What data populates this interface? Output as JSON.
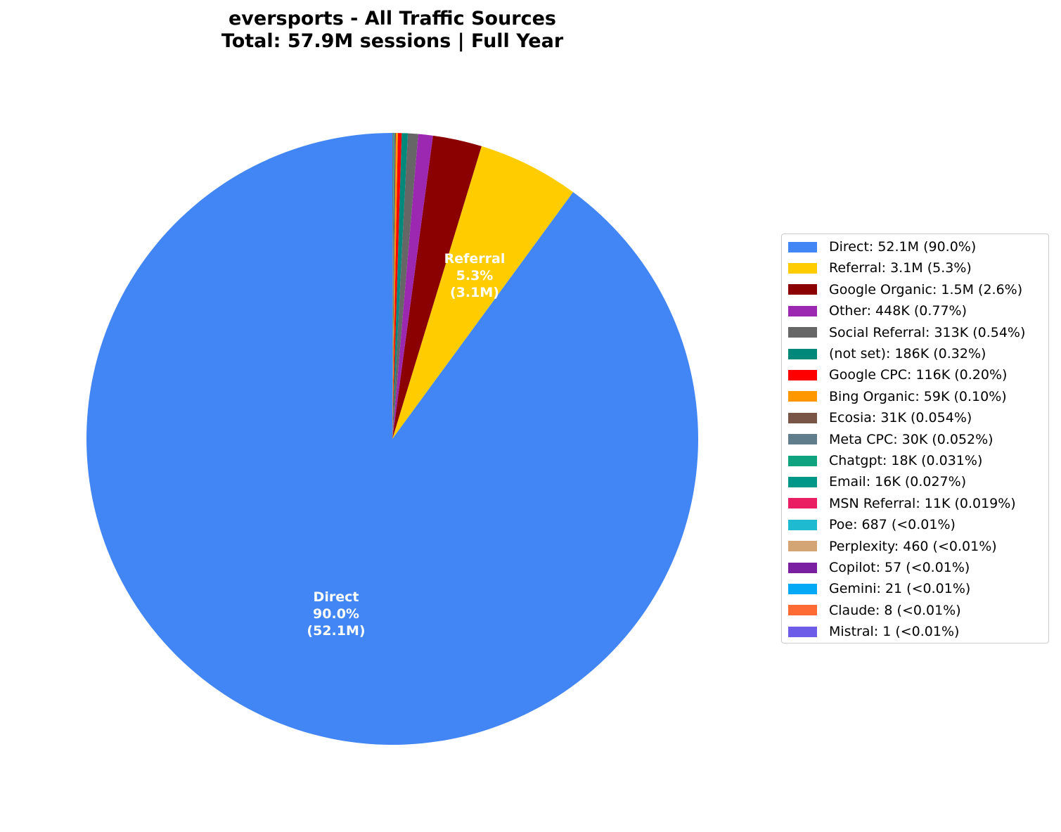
{
  "chart_data": {
    "type": "pie",
    "title": "eversports - All Traffic Sources",
    "subtitle": "Total: 57.9M sessions | Full Year",
    "start_angle": 90,
    "direction": "counterclockwise",
    "legend_position": "right",
    "slices": [
      {
        "name": "Direct",
        "value": 52100000,
        "display": "52.1M",
        "percent": "90.0%",
        "color": "#4285F4"
      },
      {
        "name": "Referral",
        "value": 3100000,
        "display": "3.1M",
        "percent": "5.3%",
        "color": "#FFCC00"
      },
      {
        "name": "Google Organic",
        "value": 1500000,
        "display": "1.5M",
        "percent": "2.6%",
        "color": "#8B0000"
      },
      {
        "name": "Other",
        "value": 448000,
        "display": "448K",
        "percent": "0.77%",
        "color": "#9C27B0"
      },
      {
        "name": "Social Referral",
        "value": 313000,
        "display": "313K",
        "percent": "0.54%",
        "color": "#666666"
      },
      {
        "name": "(not set)",
        "value": 186000,
        "display": "186K",
        "percent": "0.32%",
        "color": "#00897B"
      },
      {
        "name": "Google CPC",
        "value": 116000,
        "display": "116K",
        "percent": "0.20%",
        "color": "#FF0000"
      },
      {
        "name": "Bing Organic",
        "value": 59000,
        "display": "59K",
        "percent": "0.10%",
        "color": "#FF9800"
      },
      {
        "name": "Ecosia",
        "value": 31000,
        "display": "31K",
        "percent": "0.054%",
        "color": "#795548"
      },
      {
        "name": "Meta CPC",
        "value": 30000,
        "display": "30K",
        "percent": "0.052%",
        "color": "#607D8B"
      },
      {
        "name": "Chatgpt",
        "value": 18000,
        "display": "18K",
        "percent": "0.031%",
        "color": "#10A37F"
      },
      {
        "name": "Email",
        "value": 16000,
        "display": "16K",
        "percent": "0.027%",
        "color": "#009688"
      },
      {
        "name": "MSN Referral",
        "value": 11000,
        "display": "11K",
        "percent": "0.019%",
        "color": "#E91E63"
      },
      {
        "name": "Poe",
        "value": 687,
        "display": "687",
        "percent": "<0.01%",
        "color": "#1EBBD0"
      },
      {
        "name": "Perplexity",
        "value": 460,
        "display": "460",
        "percent": "<0.01%",
        "color": "#D4A574"
      },
      {
        "name": "Copilot",
        "value": 57,
        "display": "57",
        "percent": "<0.01%",
        "color": "#7B1FA2"
      },
      {
        "name": "Gemini",
        "value": 21,
        "display": "21",
        "percent": "<0.01%",
        "color": "#03A9F4"
      },
      {
        "name": "Claude",
        "value": 8,
        "display": "8",
        "percent": "<0.01%",
        "color": "#FF6B35"
      },
      {
        "name": "Mistral",
        "value": 1,
        "display": "1",
        "percent": "<0.01%",
        "color": "#6C5CE7"
      }
    ],
    "slice_labels": [
      {
        "name": "Direct",
        "line1": "Direct",
        "line2": "90.0%",
        "line3": "(52.1M)"
      },
      {
        "name": "Referral",
        "line1": "Referral",
        "line2": "5.3%",
        "line3": "(3.1M)"
      }
    ]
  },
  "legend": {
    "items": [
      "Direct: 52.1M (90.0%)",
      "Referral: 3.1M (5.3%)",
      "Google Organic: 1.5M (2.6%)",
      "Other: 448K (0.77%)",
      "Social Referral: 313K (0.54%)",
      "(not set): 186K (0.32%)",
      "Google CPC: 116K (0.20%)",
      "Bing Organic: 59K (0.10%)",
      "Ecosia: 31K (0.054%)",
      "Meta CPC: 30K (0.052%)",
      "Chatgpt: 18K (0.031%)",
      "Email: 16K (0.027%)",
      "MSN Referral: 11K (0.019%)",
      "Poe: 687 (<0.01%)",
      "Perplexity: 460 (<0.01%)",
      "Copilot: 57 (<0.01%)",
      "Gemini: 21 (<0.01%)",
      "Claude: 8 (<0.01%)",
      "Mistral: 1 (<0.01%)"
    ]
  }
}
